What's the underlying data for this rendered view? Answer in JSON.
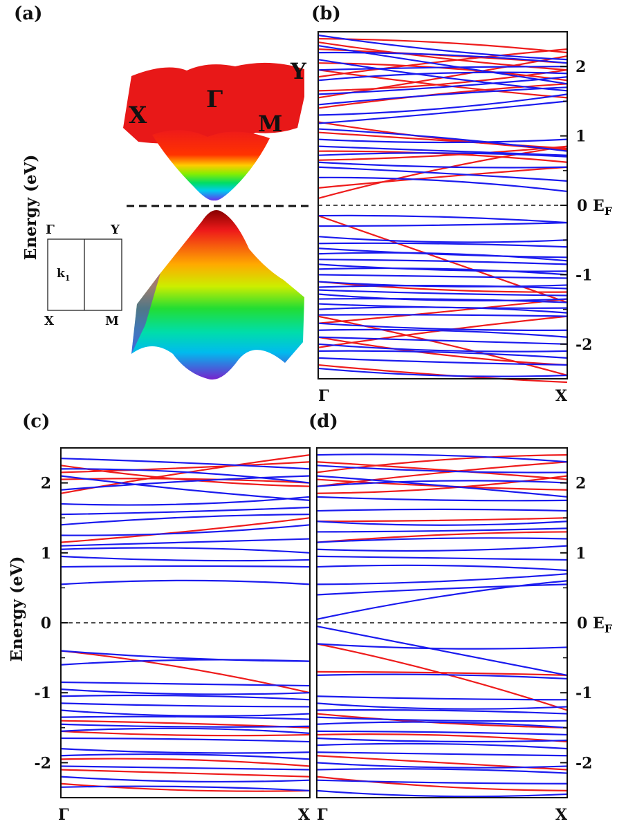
{
  "panel_labels": {
    "a": "(a)",
    "b": "(b)",
    "c": "(c)",
    "d": "(d)"
  },
  "surface_labels": {
    "X": "X",
    "G": "Γ",
    "M": "M",
    "Y": "Y"
  },
  "bz": {
    "G": "Γ",
    "Y": "Y",
    "X": "X",
    "M": "M",
    "k": "k",
    "k_sub": "1"
  },
  "left_axis_label": "Energy (eV)",
  "ef_label": {
    "main": "0  E",
    "sub": "F"
  },
  "colors": {
    "red": "#ee1c1c",
    "blue": "#1a1aee"
  },
  "chart_data": [
    {
      "type": "line",
      "panel": "(b)",
      "ylabel": "",
      "ylim": [
        -2.5,
        2.5
      ],
      "yticks": [
        -2,
        -1,
        0,
        1,
        2
      ],
      "xticks": [
        "Γ",
        "X"
      ],
      "reference_line": {
        "y": 0,
        "label": "E_F",
        "style": "dashed"
      },
      "series": [
        {
          "color": "red",
          "bands": [
            [
              0.1,
              0.85
            ],
            [
              0.25,
              0.55
            ],
            [
              0.65,
              0.85
            ],
            [
              0.78,
              0.62
            ],
            [
              1.05,
              0.82
            ],
            [
              1.2,
              0.8
            ],
            [
              1.4,
              1.75
            ],
            [
              1.55,
              2.15
            ],
            [
              1.65,
              1.95
            ],
            [
              1.85,
              2.25
            ],
            [
              1.95,
              1.55
            ],
            [
              2.05,
              1.8
            ],
            [
              2.25,
              2.05
            ],
            [
              2.35,
              1.95
            ],
            [
              2.4,
              2.2
            ],
            [
              -0.15,
              -1.4
            ],
            [
              -1.1,
              -1.25
            ],
            [
              -1.6,
              -2.45
            ],
            [
              -1.7,
              -1.35
            ],
            [
              -1.9,
              -2.3
            ],
            [
              -2.05,
              -1.6
            ],
            [
              -2.3,
              -2.55
            ]
          ]
        },
        {
          "color": "blue",
          "bands": [
            [
              0.4,
              0.2
            ],
            [
              0.55,
              0.35
            ],
            [
              0.62,
              0.55
            ],
            [
              0.72,
              0.7
            ],
            [
              0.85,
              0.72
            ],
            [
              0.95,
              0.95
            ],
            [
              1.1,
              0.78
            ],
            [
              1.18,
              1.5
            ],
            [
              1.3,
              1.6
            ],
            [
              1.45,
              1.7
            ],
            [
              1.6,
              1.85
            ],
            [
              1.8,
              1.9
            ],
            [
              1.95,
              2.0
            ],
            [
              2.1,
              1.65
            ],
            [
              2.2,
              2.05
            ],
            [
              2.3,
              1.75
            ],
            [
              2.45,
              2.1
            ],
            [
              -0.15,
              -0.25
            ],
            [
              -0.3,
              -0.25
            ],
            [
              -0.45,
              -0.5
            ],
            [
              -0.55,
              -0.6
            ],
            [
              -0.62,
              -0.75
            ],
            [
              -0.7,
              -0.8
            ],
            [
              -0.78,
              -0.85
            ],
            [
              -0.85,
              -0.95
            ],
            [
              -0.92,
              -1.0
            ],
            [
              -1.0,
              -1.05
            ],
            [
              -1.1,
              -1.15
            ],
            [
              -1.18,
              -1.2
            ],
            [
              -1.22,
              -1.3
            ],
            [
              -1.28,
              -1.35
            ],
            [
              -1.35,
              -1.4
            ],
            [
              -1.42,
              -1.48
            ],
            [
              -1.5,
              -1.55
            ],
            [
              -1.58,
              -1.6
            ],
            [
              -1.7,
              -1.8
            ],
            [
              -1.8,
              -1.9
            ],
            [
              -1.9,
              -2.0
            ],
            [
              -2.0,
              -2.1
            ],
            [
              -2.1,
              -2.2
            ],
            [
              -2.2,
              -2.3
            ],
            [
              -2.35,
              -2.45
            ]
          ]
        }
      ]
    },
    {
      "type": "line",
      "panel": "(c)",
      "ylabel": "Energy (eV)",
      "ylim": [
        -2.5,
        2.5
      ],
      "yticks": [
        -2,
        -1,
        0,
        1,
        2
      ],
      "xticks": [
        "Γ",
        "X"
      ],
      "reference_line": {
        "y": 0,
        "label": "",
        "style": "dashed"
      },
      "series": [
        {
          "color": "red",
          "bands": [
            [
              -0.4,
              -1.0
            ],
            [
              -1.4,
              -1.5
            ],
            [
              -1.55,
              -1.6
            ],
            [
              -1.95,
              -2.05
            ],
            [
              -2.1,
              -2.2
            ],
            [
              -2.3,
              -2.4
            ],
            [
              2.05,
              2.0
            ],
            [
              2.15,
              2.3
            ],
            [
              2.25,
              1.95
            ],
            [
              1.85,
              2.4
            ],
            [
              1.15,
              1.5
            ]
          ]
        },
        {
          "color": "blue",
          "bands": [
            [
              0.55,
              0.55
            ],
            [
              0.8,
              0.8
            ],
            [
              0.95,
              0.9
            ],
            [
              1.05,
              1.0
            ],
            [
              1.1,
              1.2
            ],
            [
              1.25,
              1.4
            ],
            [
              1.4,
              1.55
            ],
            [
              1.55,
              1.65
            ],
            [
              1.7,
              1.8
            ],
            [
              1.9,
              2.1
            ],
            [
              2.1,
              1.75
            ],
            [
              2.2,
              2.0
            ],
            [
              2.35,
              2.2
            ],
            [
              -0.4,
              -0.55
            ],
            [
              -0.6,
              -0.55
            ],
            [
              -0.85,
              -0.9
            ],
            [
              -0.95,
              -1.0
            ],
            [
              -1.05,
              -1.1
            ],
            [
              -1.15,
              -1.2
            ],
            [
              -1.25,
              -1.3
            ],
            [
              -1.35,
              -1.38
            ],
            [
              -1.45,
              -1.48
            ],
            [
              -1.55,
              -1.58
            ],
            [
              -1.65,
              -1.7
            ],
            [
              -1.8,
              -1.85
            ],
            [
              -1.9,
              -1.95
            ],
            [
              -2.05,
              -2.1
            ],
            [
              -2.2,
              -2.25
            ],
            [
              -2.35,
              -2.4
            ]
          ]
        }
      ]
    },
    {
      "type": "line",
      "panel": "(d)",
      "ylabel": "",
      "ylim": [
        -2.5,
        2.5
      ],
      "yticks": [
        -2,
        -1,
        0,
        1,
        2
      ],
      "xticks": [
        "Γ",
        "X"
      ],
      "reference_line": {
        "y": 0,
        "label": "E_F",
        "style": "dashed"
      },
      "series": [
        {
          "color": "red",
          "bands": [
            [
              -0.3,
              -1.25
            ],
            [
              -0.7,
              -0.75
            ],
            [
              -1.3,
              -1.5
            ],
            [
              -1.6,
              -1.7
            ],
            [
              -1.9,
              -2.1
            ],
            [
              -2.2,
              -2.4
            ],
            [
              1.15,
              1.3
            ],
            [
              1.45,
              1.5
            ],
            [
              1.85,
              2.1
            ],
            [
              1.95,
              2.3
            ],
            [
              2.05,
              1.9
            ],
            [
              2.15,
              2.4
            ],
            [
              2.3,
              2.05
            ]
          ]
        },
        {
          "color": "blue",
          "bands": [
            [
              0.05,
              0.6
            ],
            [
              0.4,
              0.55
            ],
            [
              0.55,
              0.7
            ],
            [
              0.8,
              0.75
            ],
            [
              0.95,
              0.9
            ],
            [
              1.05,
              1.1
            ],
            [
              1.15,
              1.2
            ],
            [
              1.3,
              1.35
            ],
            [
              1.45,
              1.45
            ],
            [
              1.6,
              1.6
            ],
            [
              1.8,
              1.75
            ],
            [
              1.95,
              2.0
            ],
            [
              2.1,
              1.8
            ],
            [
              2.25,
              2.15
            ],
            [
              2.4,
              2.3
            ],
            [
              -0.05,
              -0.75
            ],
            [
              -0.3,
              -0.35
            ],
            [
              -0.75,
              -0.8
            ],
            [
              -1.05,
              -1.1
            ],
            [
              -1.15,
              -1.2
            ],
            [
              -1.25,
              -1.3
            ],
            [
              -1.35,
              -1.4
            ],
            [
              -1.45,
              -1.5
            ],
            [
              -1.55,
              -1.6
            ],
            [
              -1.65,
              -1.68
            ],
            [
              -1.75,
              -1.8
            ],
            [
              -1.85,
              -1.9
            ],
            [
              -2.0,
              -2.05
            ],
            [
              -2.1,
              -2.15
            ],
            [
              -2.25,
              -2.3
            ],
            [
              -2.4,
              -2.45
            ]
          ]
        }
      ]
    }
  ]
}
